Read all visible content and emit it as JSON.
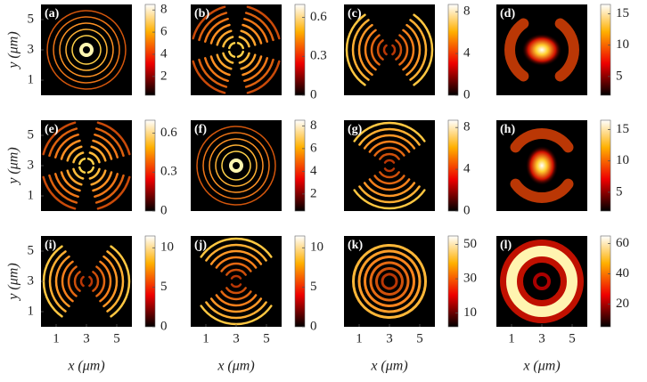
{
  "chart_data": [
    {
      "type": "heatmap",
      "label": "(a)",
      "xlim": [
        0,
        6
      ],
      "ylim": [
        0,
        6
      ],
      "yticks": [
        1,
        3,
        5
      ],
      "ylabel": "y (μm)",
      "clim": [
        0.3,
        8.5
      ],
      "cticks": [
        2,
        4,
        6,
        8
      ]
    },
    {
      "type": "heatmap",
      "label": "(b)",
      "xlim": [
        0,
        6
      ],
      "ylim": [
        0,
        6
      ],
      "clim": [
        0,
        0.7
      ],
      "cticks": [
        0,
        0.3,
        0.6
      ]
    },
    {
      "type": "heatmap",
      "label": "(c)",
      "xlim": [
        0,
        6
      ],
      "ylim": [
        0,
        6
      ],
      "clim": [
        0,
        8.7
      ],
      "cticks": [
        0,
        4,
        8
      ]
    },
    {
      "type": "heatmap",
      "label": "(d)",
      "xlim": [
        0,
        6
      ],
      "ylim": [
        0,
        6
      ],
      "clim": [
        2,
        16.5
      ],
      "cticks": [
        5,
        10,
        15
      ]
    },
    {
      "type": "heatmap",
      "label": "(e)",
      "xlim": [
        0,
        6
      ],
      "ylim": [
        0,
        6
      ],
      "yticks": [
        1,
        3,
        5
      ],
      "ylabel": "y (μm)",
      "clim": [
        0,
        0.7
      ],
      "cticks": [
        0,
        0.3,
        0.6
      ]
    },
    {
      "type": "heatmap",
      "label": "(f)",
      "xlim": [
        0,
        6
      ],
      "ylim": [
        0,
        6
      ],
      "clim": [
        0.5,
        8.5
      ],
      "cticks": [
        2,
        4,
        6,
        8
      ]
    },
    {
      "type": "heatmap",
      "label": "(g)",
      "xlim": [
        0,
        6
      ],
      "ylim": [
        0,
        6
      ],
      "clim": [
        0,
        8.7
      ],
      "cticks": [
        0,
        4,
        8
      ]
    },
    {
      "type": "heatmap",
      "label": "(h)",
      "xlim": [
        0,
        6
      ],
      "ylim": [
        0,
        6
      ],
      "clim": [
        2,
        16.5
      ],
      "cticks": [
        5,
        10,
        15
      ]
    },
    {
      "type": "heatmap",
      "label": "(i)",
      "xlim": [
        0,
        6
      ],
      "ylim": [
        0,
        6
      ],
      "yticks": [
        1,
        3,
        5
      ],
      "ylabel": "y (μm)",
      "xticks": [
        1,
        3,
        5
      ],
      "xlabel": "x (μm)",
      "clim": [
        0,
        11.5
      ],
      "cticks": [
        0,
        5,
        10
      ]
    },
    {
      "type": "heatmap",
      "label": "(j)",
      "xlim": [
        0,
        6
      ],
      "ylim": [
        0,
        6
      ],
      "xticks": [
        1,
        3,
        5
      ],
      "xlabel": "x (μm)",
      "clim": [
        0,
        11.5
      ],
      "cticks": [
        0,
        5,
        10
      ]
    },
    {
      "type": "heatmap",
      "label": "(k)",
      "xlim": [
        0,
        6
      ],
      "ylim": [
        0,
        6
      ],
      "xticks": [
        1,
        3,
        5
      ],
      "xlabel": "x (μm)",
      "clim": [
        2,
        55
      ],
      "cticks": [
        10,
        30,
        50
      ]
    },
    {
      "type": "heatmap",
      "label": "(l)",
      "xlim": [
        0,
        6
      ],
      "ylim": [
        0,
        6
      ],
      "xticks": [
        1,
        3,
        5
      ],
      "xlabel": "x (μm)",
      "clim": [
        5,
        65
      ],
      "cticks": [
        20,
        40,
        60
      ]
    }
  ]
}
